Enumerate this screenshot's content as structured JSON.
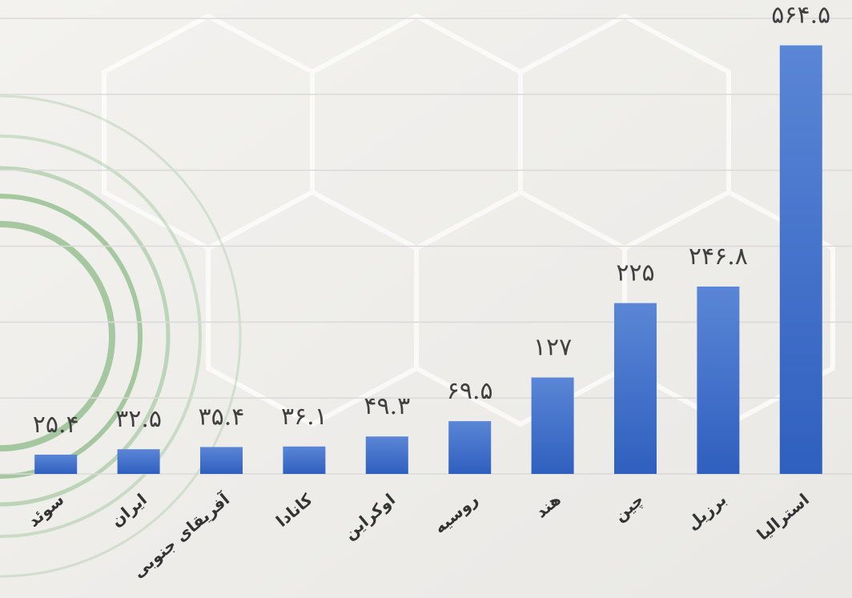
{
  "chart_data": {
    "type": "bar",
    "categories": [
      "سوئد",
      "ایران",
      "آفریقای جنوبی",
      "کانادا",
      "اوکراین",
      "روسیه",
      "هند",
      "چین",
      "برزیل",
      "استرالیا"
    ],
    "values": [
      25.4,
      32.5,
      35.4,
      36.1,
      49.3,
      69.5,
      127,
      225,
      246.8,
      564.5
    ],
    "value_labels": [
      "۲۵.۴",
      "۳۲.۵",
      "۳۵.۴",
      "۳۶.۱",
      "۴۹.۳",
      "۶۹.۵",
      "۱۲۷",
      "۲۲۵",
      "۲۴۶.۸",
      "۵۶۴.۵"
    ],
    "color": "#4472c4",
    "ylim": [
      0,
      600
    ],
    "yticks": [
      0,
      100,
      200,
      300,
      400,
      500,
      600
    ],
    "grid": true
  }
}
